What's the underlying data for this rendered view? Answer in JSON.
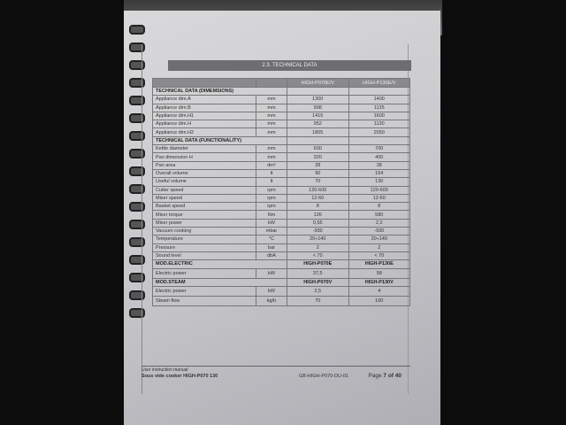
{
  "section_title": "2.3. TECHNICAL DATA",
  "columns": [
    "",
    "",
    "HIGH-P070E/V",
    "HIGH-P130E/V"
  ],
  "dimensions": {
    "heading": "TECHNICAL DATA (DIMEMSIONS)",
    "rows": [
      {
        "label": "Appliance dim.A",
        "unit": "mm",
        "v1": "1300",
        "v2": "1400"
      },
      {
        "label": "Appliance dim.B",
        "unit": "mm",
        "v1": "908",
        "v2": "1135"
      },
      {
        "label": "Appliance dim.H1",
        "unit": "mm",
        "v1": "1415",
        "v2": "1600"
      },
      {
        "label": "Appliance dim.H",
        "unit": "mm",
        "v1": "952",
        "v2": "1130"
      },
      {
        "label": "Appliance dim.H2",
        "unit": "mm",
        "v1": "1805",
        "v2": "2050"
      }
    ]
  },
  "functionality": {
    "heading": "TECHNICAL DATA (FUNCTIONALITY)",
    "rows": [
      {
        "label": "Kettle diameter",
        "unit": "mm",
        "v1": "600",
        "v2": "700"
      },
      {
        "label": "Pan dimension H",
        "unit": "mm",
        "v1": "320",
        "v2": "400"
      },
      {
        "label": "Pan area",
        "unit": "dm²",
        "v1": "28",
        "v2": "38"
      },
      {
        "label": "Overall volume",
        "unit": "lt",
        "v1": "90",
        "v2": "154"
      },
      {
        "label": "Useful volume",
        "unit": "lt",
        "v1": "70",
        "v2": "130"
      },
      {
        "label": "Cutter speed",
        "unit": "rpm",
        "v1": "120-600",
        "v2": "120-600"
      },
      {
        "label": "Mixer speed",
        "unit": "rpm",
        "v1": "12-60",
        "v2": "12-60"
      },
      {
        "label": "Basket speed",
        "unit": "rpm",
        "v1": "8",
        "v2": "8"
      },
      {
        "label": "Mixer torque",
        "unit": "Nm",
        "v1": "126",
        "v2": "580"
      },
      {
        "label": "Mixer power",
        "unit": "kW",
        "v1": "0,55",
        "v2": "2,2"
      },
      {
        "label": "Vacuum cooking",
        "unit": "mbar",
        "v1": "-930",
        "v2": "-930"
      },
      {
        "label": "Temperature",
        "unit": "°C",
        "v1": "20÷140",
        "v2": "20÷140"
      },
      {
        "label": "Pressure",
        "unit": "bar",
        "v1": "2",
        "v2": "2"
      },
      {
        "label": "Sound level",
        "unit": "dbA",
        "v1": "< 70",
        "v2": "< 70"
      }
    ]
  },
  "electric": {
    "heading": "MOD.ELECTRIC",
    "m1": "HIGH-P070E",
    "m2": "HIGH-P130E",
    "rows": [
      {
        "label": "Electric power",
        "unit": "kW",
        "v1": "37,5",
        "v2": "58"
      }
    ]
  },
  "steam": {
    "heading": "MOD.STEAM",
    "m1": "HIGH-P070V",
    "m2": "HIGH-P130V",
    "rows": [
      {
        "label": "Electric power",
        "unit": "kW",
        "v1": "2,5",
        "v2": "4"
      },
      {
        "label": "Steam flow",
        "unit": "kg/h",
        "v1": "70",
        "v2": "100"
      }
    ]
  },
  "footer": {
    "manual": "User instruction manual",
    "product": "Sous vide cooker HIGH-P070 130",
    "code": "GB-HIGH-P070-DU-01",
    "page_label": "Page",
    "page": "7",
    "of_label": "of",
    "total": "40"
  }
}
